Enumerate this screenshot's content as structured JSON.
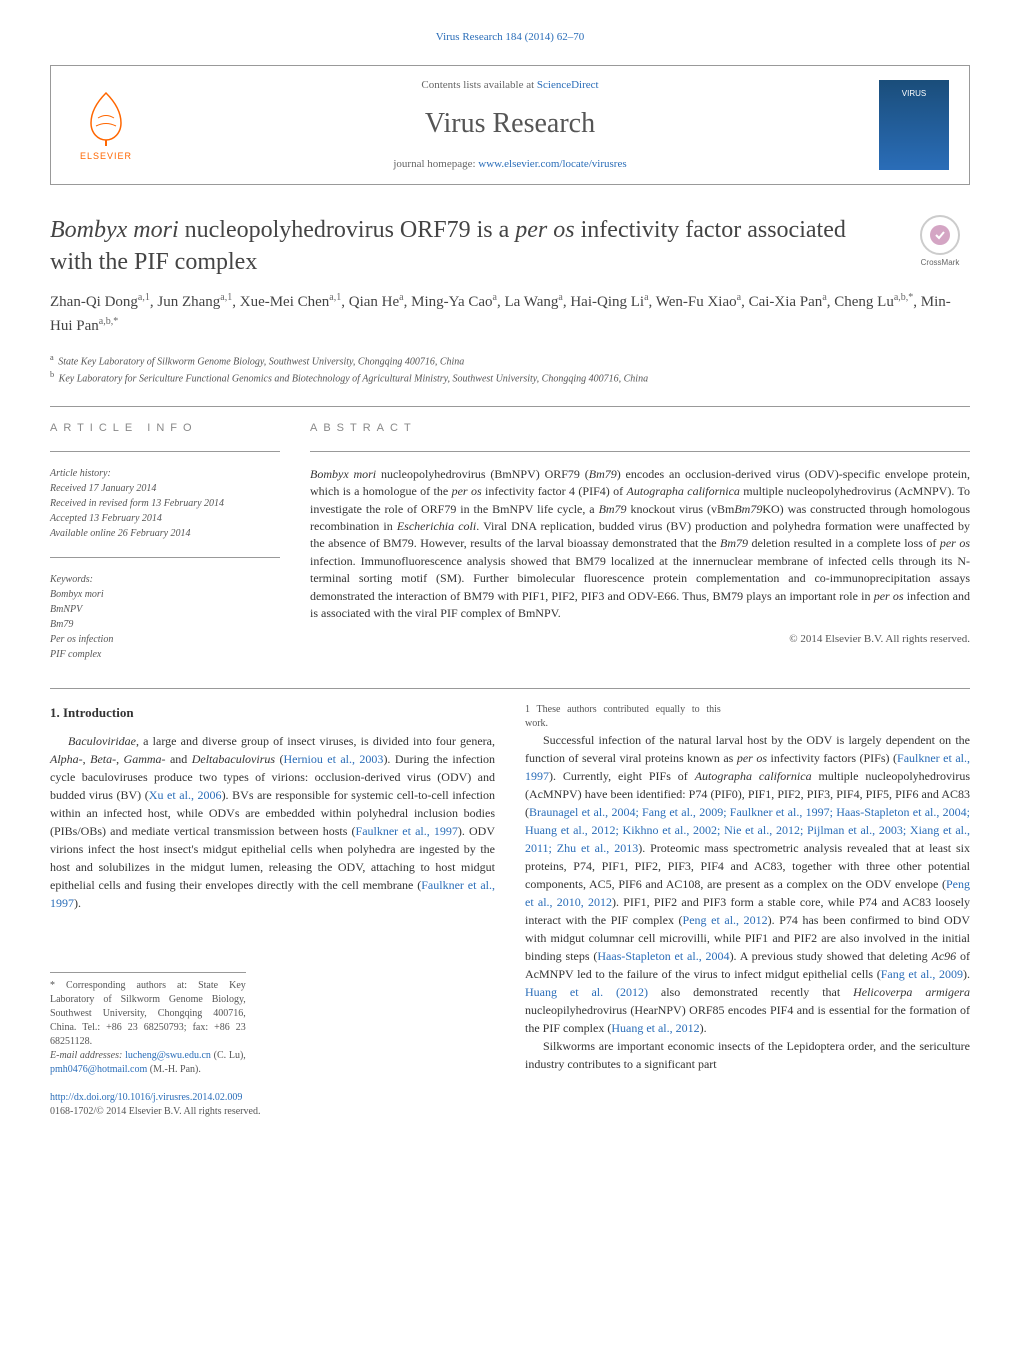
{
  "top_link": {
    "text": "Virus Research 184 (2014) 62–70",
    "href": "#"
  },
  "header": {
    "contents_prefix": "Contents lists available at ",
    "contents_link": "ScienceDirect",
    "journal": "Virus Research",
    "homepage_prefix": "journal homepage: ",
    "homepage_link": "www.elsevier.com/locate/virusres",
    "elsevier": "ELSEVIER",
    "cover_label": "VIRUS"
  },
  "crossmark": "CrossMark",
  "title_plain_pre": "Bombyx mori",
  "title_mid": " nucleopolyhedrovirus ORF79 is a ",
  "title_ital2": "per os",
  "title_post": " infectivity factor associated with the PIF complex",
  "authors_html": "Zhan-Qi Dong|a,1|, Jun Zhang|a,1|, Xue-Mei Chen|a,1|, Qian He|a|, Ming-Ya Cao|a|, La Wang|a|, Hai-Qing Li|a|, Wen-Fu Xiao|a|, Cai-Xia Pan|a|, Cheng Lu|a,b,*|, Min-Hui Pan|a,b,*|",
  "affiliations": [
    {
      "sup": "a",
      "text": "State Key Laboratory of Silkworm Genome Biology, Southwest University, Chongqing 400716, China"
    },
    {
      "sup": "b",
      "text": "Key Laboratory for Sericulture Functional Genomics and Biotechnology of Agricultural Ministry, Southwest University, Chongqing 400716, China"
    }
  ],
  "article_info_head": "ARTICLE INFO",
  "abstract_head": "ABSTRACT",
  "history": {
    "label": "Article history:",
    "lines": [
      "Received 17 January 2014",
      "Received in revised form 13 February 2014",
      "Accepted 13 February 2014",
      "Available online 26 February 2014"
    ]
  },
  "keywords": {
    "label": "Keywords:",
    "items": [
      "Bombyx mori",
      "BmNPV",
      "Bm79",
      "Per os infection",
      "PIF complex"
    ]
  },
  "abstract": "Bombyx mori nucleopolyhedrovirus (BmNPV) ORF79 (Bm79) encodes an occlusion-derived virus (ODV)-specific envelope protein, which is a homologue of the per os infectivity factor 4 (PIF4) of Autographa californica multiple nucleopolyhedrovirus (AcMNPV). To investigate the role of ORF79 in the BmNPV life cycle, a Bm79 knockout virus (vBmBm79KO) was constructed through homologous recombination in Escherichia coli. Viral DNA replication, budded virus (BV) production and polyhedra formation were unaffected by the absence of BM79. However, results of the larval bioassay demonstrated that the Bm79 deletion resulted in a complete loss of per os infection. Immunofluorescence analysis showed that BM79 localized at the innernuclear membrane of infected cells through its N-terminal sorting motif (SM). Further bimolecular fluorescence protein complementation and co-immunoprecipitation assays demonstrated the interaction of BM79 with PIF1, PIF2, PIF3 and ODV-E66. Thus, BM79 plays an important role in per os infection and is associated with the viral PIF complex of BmNPV.",
  "abstract_copyright": "© 2014 Elsevier B.V. All rights reserved.",
  "intro_head": "1. Introduction",
  "para1": "Baculoviridae, a large and diverse group of insect viruses, is divided into four genera, Alpha-, Beta-, Gamma- and Deltabaculovirus (Herniou et al., 2003). During the infection cycle baculoviruses produce two types of virions: occlusion-derived virus (ODV) and budded virus (BV) (Xu et al., 2006). BVs are responsible for systemic cell-to-cell infection within an infected host, while ODVs are embedded within polyhedral inclusion bodies (PIBs/OBs) and mediate vertical transmission between hosts (Faulkner et al., 1997). ODV virions infect the host insect's midgut epithelial cells when polyhedra are ingested by the host and solubilizes in the midgut lumen, releasing the ODV, attaching to host midgut epithelial cells and fusing their envelopes directly with the cell membrane (Faulkner et al., 1997).",
  "para2": "Successful infection of the natural larval host by the ODV is largely dependent on the function of several viral proteins known as per os infectivity factors (PIFs) (Faulkner et al., 1997). Currently, eight PIFs of Autographa californica multiple nucleopolyhedrovirus (AcMNPV) have been identified: P74 (PIF0), PIF1, PIF2, PIF3, PIF4, PIF5, PIF6 and AC83 (Braunagel et al., 2004; Fang et al., 2009; Faulkner et al., 1997; Haas-Stapleton et al., 2004; Huang et al., 2012; Kikhno et al., 2002; Nie et al., 2012; Pijlman et al., 2003; Xiang et al., 2011; Zhu et al., 2013). Proteomic mass spectrometric analysis revealed that at least six proteins, P74, PIF1, PIF2, PIF3, PIF4 and AC83, together with three other potential components, AC5, PIF6 and AC108, are present as a complex on the ODV envelope (Peng et al., 2010, 2012). PIF1, PIF2 and PIF3 form a stable core, while P74 and AC83 loosely interact with the PIF complex (Peng et al., 2012). P74 has been confirmed to bind ODV with midgut columnar cell microvilli, while PIF1 and PIF2 are also involved in the initial binding steps (Haas-Stapleton et al., 2004). A previous study showed that deleting Ac96 of AcMNPV led to the failure of the virus to infect midgut epithelial cells (Fang et al., 2009). Huang et al. (2012) also demonstrated recently that Helicoverpa armigera nucleopilyhedrovirus (HearNPV) ORF85 encodes PIF4 and is essential for the formation of the PIF complex (Huang et al., 2012).",
  "para3": "Silkworms are important economic insects of the Lepidoptera order, and the sericulture industry contributes to a significant part",
  "footnotes": {
    "corr": "* Corresponding authors at: State Key Laboratory of Silkworm Genome Biology, Southwest University, Chongqing 400716, China. Tel.: +86 23 68250793; fax: +86 23 68251128.",
    "email_label": "E-mail addresses: ",
    "email1": "lucheng@swu.edu.cn",
    "email1_who": " (C. Lu), ",
    "email2": "pmh0476@hotmail.com",
    "email2_who": " (M.-H. Pan).",
    "equal": "1 These authors contributed equally to this work."
  },
  "doi": "http://dx.doi.org/10.1016/j.virusres.2014.02.009",
  "bottom_copyright": "0168-1702/© 2014 Elsevier B.V. All rights reserved."
}
